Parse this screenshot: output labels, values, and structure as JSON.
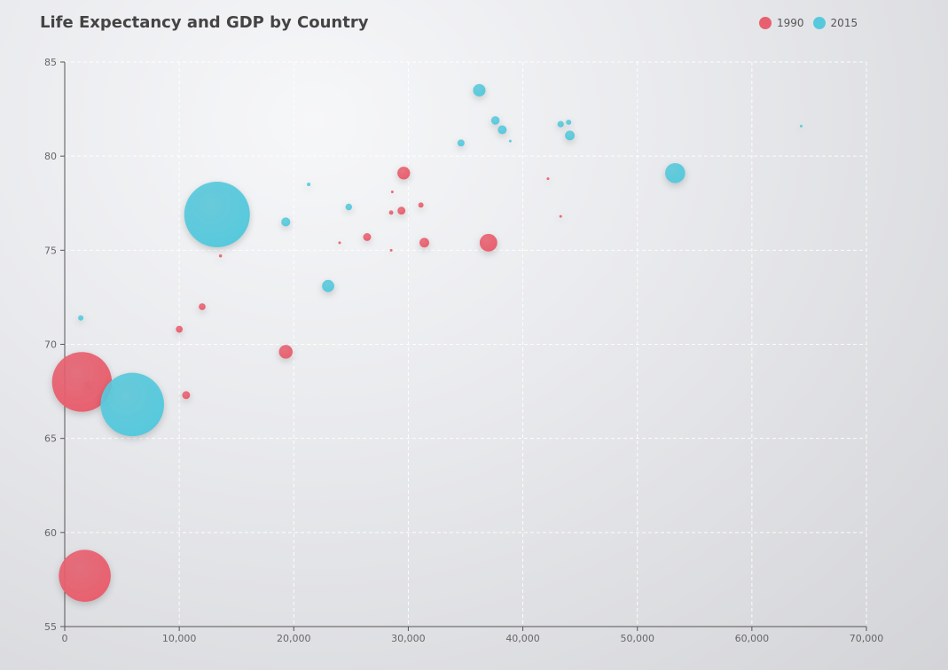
{
  "chart_data": {
    "type": "scatter",
    "title": "Life Expectancy and GDP by Country",
    "xlabel": "",
    "ylabel": "",
    "xlim": [
      0,
      70000
    ],
    "ylim": [
      55,
      85
    ],
    "x_ticks": [
      0,
      10000,
      20000,
      30000,
      40000,
      50000,
      60000,
      70000
    ],
    "x_tick_labels": [
      "0",
      "10,000",
      "20,000",
      "30,000",
      "40,000",
      "50,000",
      "60,000",
      "70,000"
    ],
    "y_ticks": [
      55,
      60,
      65,
      70,
      75,
      80,
      85
    ],
    "y_tick_labels": [
      "55",
      "60",
      "65",
      "70",
      "75",
      "80",
      "85"
    ],
    "grid": true,
    "legend_position": "top-right",
    "size_encoding": "population",
    "series": [
      {
        "name": "1990",
        "color": "#e8606f",
        "points": [
          {
            "x": 1500,
            "y": 68.0,
            "population": 1154000000
          },
          {
            "x": 1750,
            "y": 57.7,
            "population": 870000000
          },
          {
            "x": 2000,
            "y": 67.9,
            "population": 4000000
          },
          {
            "x": 10000,
            "y": 70.8,
            "population": 15000000
          },
          {
            "x": 10600,
            "y": 67.3,
            "population": 20000000
          },
          {
            "x": 12000,
            "y": 72.0,
            "population": 15000000
          },
          {
            "x": 13600,
            "y": 74.7,
            "population": 3000000
          },
          {
            "x": 19300,
            "y": 69.6,
            "population": 60000000
          },
          {
            "x": 24000,
            "y": 75.4,
            "population": 1000000
          },
          {
            "x": 26400,
            "y": 75.7,
            "population": 20000000
          },
          {
            "x": 28500,
            "y": 77.0,
            "population": 6000000
          },
          {
            "x": 28500,
            "y": 75.0,
            "population": 1200000
          },
          {
            "x": 28600,
            "y": 78.1,
            "population": 100000
          },
          {
            "x": 29400,
            "y": 77.1,
            "population": 20000000
          },
          {
            "x": 29600,
            "y": 79.1,
            "population": 52000000
          },
          {
            "x": 31100,
            "y": 77.4,
            "population": 9000000
          },
          {
            "x": 31400,
            "y": 75.4,
            "population": 30000000
          },
          {
            "x": 37000,
            "y": 75.4,
            "population": 100000000
          },
          {
            "x": 42200,
            "y": 78.8,
            "population": 200000
          },
          {
            "x": 43300,
            "y": 76.8,
            "population": 1000000
          }
        ]
      },
      {
        "name": "2015",
        "color": "#57c9dc",
        "points": [
          {
            "x": 1400,
            "y": 71.4,
            "population": 9000000
          },
          {
            "x": 5900,
            "y": 66.8,
            "population": 1300000000
          },
          {
            "x": 13300,
            "y": 76.9,
            "population": 1390000000
          },
          {
            "x": 19300,
            "y": 76.5,
            "population": 26000000
          },
          {
            "x": 21300,
            "y": 78.5,
            "population": 4000000
          },
          {
            "x": 23000,
            "y": 73.1,
            "population": 48000000
          },
          {
            "x": 24800,
            "y": 77.3,
            "population": 14000000
          },
          {
            "x": 34600,
            "y": 80.7,
            "population": 16000000
          },
          {
            "x": 36200,
            "y": 83.5,
            "population": 50000000
          },
          {
            "x": 37600,
            "y": 81.9,
            "population": 23000000
          },
          {
            "x": 38200,
            "y": 81.4,
            "population": 25000000
          },
          {
            "x": 38900,
            "y": 80.8,
            "population": 1000000
          },
          {
            "x": 43300,
            "y": 81.7,
            "population": 13000000
          },
          {
            "x": 44000,
            "y": 81.8,
            "population": 9000000
          },
          {
            "x": 44100,
            "y": 81.1,
            "population": 30000000
          },
          {
            "x": 53300,
            "y": 79.1,
            "population": 130000000
          },
          {
            "x": 64300,
            "y": 81.6,
            "population": 1500000
          }
        ]
      }
    ]
  }
}
